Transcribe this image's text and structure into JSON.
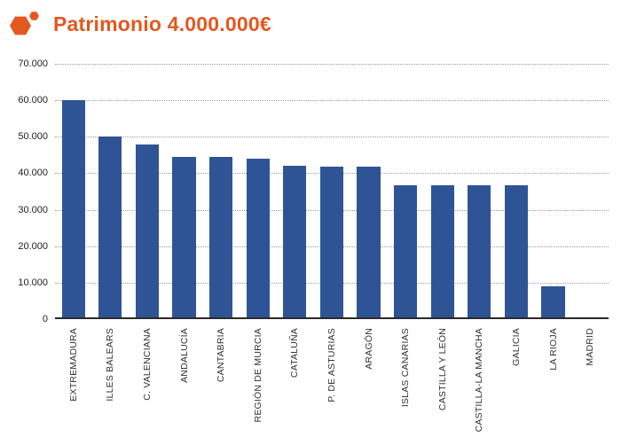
{
  "colors": {
    "accent": "#e4571f",
    "bar": "#2f5496"
  },
  "icons": {
    "header": "hexagon-icon"
  },
  "chart_data": {
    "type": "bar",
    "title": "Patrimonio 4.000.000€",
    "xlabel": "",
    "ylabel": "",
    "categories": [
      "EXTREMADURA",
      "ILLES BALEARS",
      "C. VALENCIANA",
      "ANDALUCÍA",
      "CANTABRIA",
      "REGIÓN DE MURCIA",
      "CATALUÑA",
      "P. DE ASTURIAS",
      "ARAGÓN",
      "ISLAS CANARIAS",
      "CASTILLA Y LEÓN",
      "CASTILLA-LA MANCHA",
      "GALICIA",
      "LA RIOJA",
      "MADRID"
    ],
    "values": [
      60000,
      50000,
      48000,
      44500,
      44500,
      44000,
      42000,
      41800,
      41800,
      36800,
      36700,
      36700,
      36700,
      9000,
      300
    ],
    "y_ticks": [
      "70.000",
      "60.000",
      "50.000",
      "40.000",
      "30.000",
      "20.000",
      "10.000",
      "0"
    ],
    "ylim": [
      0,
      70000
    ],
    "grid": "horizontal-dotted",
    "legend": "none",
    "x_label_rotation": 90
  }
}
